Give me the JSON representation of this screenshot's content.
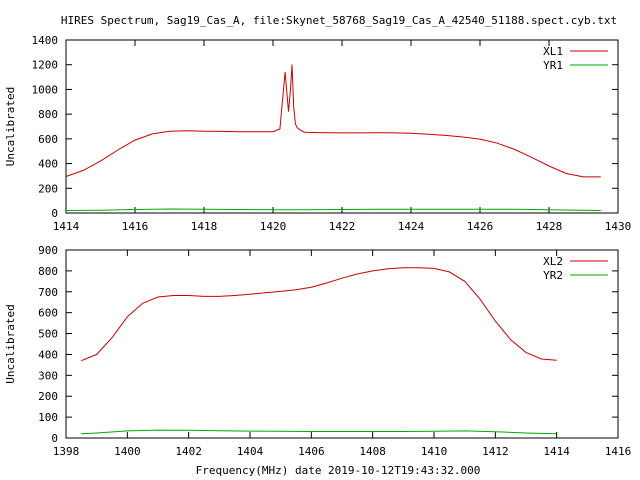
{
  "figure_title": "HIRES Spectrum, Sag19_Cas_A, file:Skynet_58768_Sag19_Cas_A_42540_51188.spect.cyb.txt",
  "xlabel_bottom": "Frequency(MHz) date 2019-10-12T19:43:32.000",
  "chart_data": [
    {
      "type": "line",
      "ylabel": "Uncalibrated",
      "xlim": [
        1414,
        1430
      ],
      "ylim": [
        0,
        1400
      ],
      "xticks": [
        "1414",
        "1416",
        "1418",
        "1420",
        "1422",
        "1424",
        "1426",
        "1428",
        "1430"
      ],
      "yticks": [
        "0",
        "200",
        "400",
        "600",
        "800",
        "1000",
        "1200",
        "1400"
      ],
      "legend_placement": "top-right",
      "series": [
        {
          "name": "XL1",
          "color": "#cc0000",
          "x": [
            1414.0,
            1414.5,
            1415.0,
            1415.5,
            1416.0,
            1416.5,
            1417.0,
            1417.5,
            1418.0,
            1418.5,
            1419.0,
            1419.5,
            1420.0,
            1420.2,
            1420.35,
            1420.45,
            1420.5,
            1420.55,
            1420.6,
            1420.65,
            1420.7,
            1420.8,
            1420.9,
            1421.0,
            1421.5,
            1422.0,
            1422.5,
            1423.0,
            1423.5,
            1424.0,
            1424.5,
            1425.0,
            1425.5,
            1426.0,
            1426.5,
            1427.0,
            1427.5,
            1428.0,
            1428.5,
            1429.0,
            1429.5
          ],
          "values": [
            295,
            345,
            420,
            510,
            590,
            640,
            662,
            665,
            662,
            660,
            658,
            657,
            658,
            680,
            1140,
            820,
            980,
            1200,
            860,
            720,
            690,
            670,
            655,
            652,
            650,
            648,
            648,
            650,
            648,
            645,
            638,
            628,
            615,
            598,
            565,
            515,
            450,
            380,
            320,
            292,
            292
          ]
        },
        {
          "name": "YR1",
          "color": "#00aa00",
          "x": [
            1414.0,
            1415.0,
            1416.0,
            1417.0,
            1418.0,
            1419.0,
            1420.0,
            1421.0,
            1422.0,
            1423.0,
            1424.0,
            1425.0,
            1426.0,
            1427.0,
            1428.0,
            1429.0,
            1429.5
          ],
          "values": [
            20,
            22,
            28,
            32,
            30,
            28,
            26,
            26,
            28,
            30,
            30,
            30,
            30,
            30,
            26,
            22,
            20
          ]
        }
      ]
    },
    {
      "type": "line",
      "ylabel": "Uncalibrated",
      "xlim": [
        1398,
        1416
      ],
      "ylim": [
        0,
        900
      ],
      "xticks": [
        "1398",
        "1400",
        "1402",
        "1404",
        "1406",
        "1408",
        "1410",
        "1412",
        "1414",
        "1416"
      ],
      "yticks": [
        "0",
        "100",
        "200",
        "300",
        "400",
        "500",
        "600",
        "700",
        "800",
        "900"
      ],
      "legend_placement": "top-right",
      "series": [
        {
          "name": "XL2",
          "color": "#cc0000",
          "x": [
            1398.5,
            1399.0,
            1399.5,
            1400.0,
            1400.5,
            1401.0,
            1401.5,
            1402.0,
            1402.5,
            1403.0,
            1403.5,
            1404.0,
            1404.5,
            1405.0,
            1405.5,
            1406.0,
            1406.5,
            1407.0,
            1407.5,
            1408.0,
            1408.5,
            1409.0,
            1409.5,
            1410.0,
            1410.5,
            1411.0,
            1411.5,
            1412.0,
            1412.5,
            1413.0,
            1413.5,
            1414.0
          ],
          "values": [
            370,
            400,
            480,
            580,
            645,
            675,
            682,
            682,
            678,
            678,
            682,
            688,
            695,
            702,
            710,
            722,
            742,
            765,
            785,
            800,
            810,
            815,
            815,
            812,
            795,
            750,
            665,
            560,
            470,
            410,
            378,
            372
          ]
        },
        {
          "name": "YR2",
          "color": "#00aa00",
          "x": [
            1398.5,
            1399.0,
            1400.0,
            1401.0,
            1402.0,
            1403.0,
            1404.0,
            1405.0,
            1406.0,
            1407.0,
            1408.0,
            1409.0,
            1410.0,
            1411.0,
            1412.0,
            1413.0,
            1414.0
          ],
          "values": [
            20,
            24,
            34,
            38,
            37,
            35,
            33,
            32,
            31,
            31,
            31,
            31,
            32,
            34,
            30,
            24,
            20
          ]
        }
      ]
    }
  ]
}
